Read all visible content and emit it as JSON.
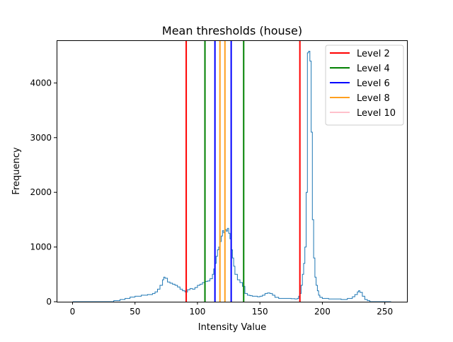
{
  "chart_data": {
    "type": "line",
    "title": "Mean thresholds (house)",
    "xlabel": "Intensity Value",
    "ylabel": "Frequency",
    "xlim": [
      -12.75,
      267.75
    ],
    "ylim": [
      0,
      4780
    ],
    "x_ticks": [
      0,
      50,
      100,
      150,
      200,
      250
    ],
    "y_ticks": [
      0,
      1000,
      2000,
      3000,
      4000
    ],
    "histogram": {
      "color": "#1f77b4",
      "points": [
        [
          0,
          0
        ],
        [
          30,
          0
        ],
        [
          33,
          20
        ],
        [
          38,
          40
        ],
        [
          42,
          60
        ],
        [
          46,
          85
        ],
        [
          50,
          100
        ],
        [
          55,
          120
        ],
        [
          60,
          130
        ],
        [
          64,
          150
        ],
        [
          66,
          180
        ],
        [
          68,
          230
        ],
        [
          70,
          300
        ],
        [
          72,
          400
        ],
        [
          73,
          450
        ],
        [
          74,
          430
        ],
        [
          76,
          360
        ],
        [
          78,
          340
        ],
        [
          80,
          320
        ],
        [
          82,
          300
        ],
        [
          84,
          270
        ],
        [
          86,
          230
        ],
        [
          88,
          200
        ],
        [
          90,
          180
        ],
        [
          92,
          220
        ],
        [
          94,
          240
        ],
        [
          96,
          230
        ],
        [
          98,
          260
        ],
        [
          100,
          300
        ],
        [
          102,
          320
        ],
        [
          104,
          350
        ],
        [
          106,
          370
        ],
        [
          108,
          380
        ],
        [
          110,
          420
        ],
        [
          112,
          500
        ],
        [
          113,
          600
        ],
        [
          114,
          700
        ],
        [
          115,
          830
        ],
        [
          116,
          950
        ],
        [
          117,
          1000
        ],
        [
          118,
          1100
        ],
        [
          119,
          1200
        ],
        [
          120,
          1300
        ],
        [
          121,
          1260
        ],
        [
          122,
          1320
        ],
        [
          123,
          1290
        ],
        [
          124,
          1340
        ],
        [
          125,
          1250
        ],
        [
          126,
          1150
        ],
        [
          127,
          950
        ],
        [
          128,
          800
        ],
        [
          129,
          650
        ],
        [
          130,
          500
        ],
        [
          132,
          400
        ],
        [
          134,
          350
        ],
        [
          136,
          280
        ],
        [
          138,
          150
        ],
        [
          140,
          120
        ],
        [
          142,
          110
        ],
        [
          144,
          100
        ],
        [
          146,
          100
        ],
        [
          148,
          90
        ],
        [
          150,
          100
        ],
        [
          152,
          120
        ],
        [
          154,
          150
        ],
        [
          156,
          160
        ],
        [
          158,
          150
        ],
        [
          160,
          120
        ],
        [
          162,
          80
        ],
        [
          165,
          60
        ],
        [
          170,
          60
        ],
        [
          175,
          55
        ],
        [
          178,
          50
        ],
        [
          180,
          60
        ],
        [
          181,
          100
        ],
        [
          182,
          150
        ],
        [
          183,
          300
        ],
        [
          184,
          500
        ],
        [
          185,
          700
        ],
        [
          186,
          1000
        ],
        [
          187,
          2000
        ],
        [
          188,
          4550
        ],
        [
          189,
          4580
        ],
        [
          190,
          4400
        ],
        [
          191,
          3100
        ],
        [
          192,
          1500
        ],
        [
          193,
          800
        ],
        [
          194,
          450
        ],
        [
          195,
          300
        ],
        [
          196,
          200
        ],
        [
          197,
          120
        ],
        [
          198,
          80
        ],
        [
          200,
          60
        ],
        [
          205,
          50
        ],
        [
          210,
          50
        ],
        [
          215,
          40
        ],
        [
          220,
          60
        ],
        [
          224,
          90
        ],
        [
          226,
          130
        ],
        [
          228,
          180
        ],
        [
          229,
          200
        ],
        [
          230,
          170
        ],
        [
          232,
          100
        ],
        [
          234,
          40
        ],
        [
          236,
          20
        ],
        [
          238,
          0
        ],
        [
          255,
          0
        ]
      ]
    },
    "thresholds": [
      {
        "name": "Level 2",
        "color": "#ff0000",
        "x": [
          91,
          182
        ]
      },
      {
        "name": "Level 4",
        "color": "#008000",
        "x": [
          106,
          137
        ]
      },
      {
        "name": "Level 6",
        "color": "#0000ff",
        "x": [
          114,
          127
        ]
      },
      {
        "name": "Level 8",
        "color": "#ff9f1f",
        "x": [
          118,
          122
        ]
      },
      {
        "name": "Level 10",
        "color": "#ffc0cb",
        "x": []
      }
    ],
    "legend_position": "top-right",
    "grid": false
  }
}
